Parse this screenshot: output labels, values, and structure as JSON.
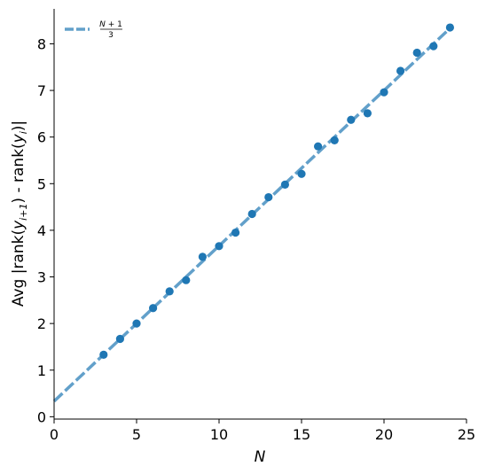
{
  "chart_data": {
    "type": "scatter",
    "xlabel": "N",
    "ylabel": "Avg |rank(y_{i+1}) - rank(y_i)|",
    "xlim": [
      0,
      25
    ],
    "ylim": [
      -0.05,
      8.75
    ],
    "xticks": [
      0,
      5,
      10,
      15,
      20,
      25
    ],
    "yticks": [
      0,
      1,
      2,
      3,
      4,
      5,
      6,
      7,
      8
    ],
    "grid": false,
    "legend_position": "top-left",
    "series": [
      {
        "kind": "points",
        "color": "#1f77b4",
        "points": [
          {
            "x": 3,
            "y": 1.33
          },
          {
            "x": 4,
            "y": 1.67
          },
          {
            "x": 5,
            "y": 2.0
          },
          {
            "x": 6,
            "y": 2.33
          },
          {
            "x": 7,
            "y": 2.69
          },
          {
            "x": 8,
            "y": 2.93
          },
          {
            "x": 9,
            "y": 3.43
          },
          {
            "x": 10,
            "y": 3.66
          },
          {
            "x": 11,
            "y": 3.95
          },
          {
            "x": 12,
            "y": 4.35
          },
          {
            "x": 13,
            "y": 4.71
          },
          {
            "x": 14,
            "y": 4.98
          },
          {
            "x": 15,
            "y": 5.21
          },
          {
            "x": 16,
            "y": 5.8
          },
          {
            "x": 17,
            "y": 5.93
          },
          {
            "x": 18,
            "y": 6.37
          },
          {
            "x": 19,
            "y": 6.51
          },
          {
            "x": 20,
            "y": 6.96
          },
          {
            "x": 21,
            "y": 7.42
          },
          {
            "x": 22,
            "y": 7.81
          },
          {
            "x": 23,
            "y": 7.95
          },
          {
            "x": 24,
            "y": 8.35
          }
        ]
      },
      {
        "kind": "reference-line",
        "name": "(N+1)/3",
        "color": "#1f77b4",
        "style": "dashed",
        "x": [
          0,
          24
        ],
        "y": [
          0.333,
          8.333
        ]
      }
    ]
  }
}
